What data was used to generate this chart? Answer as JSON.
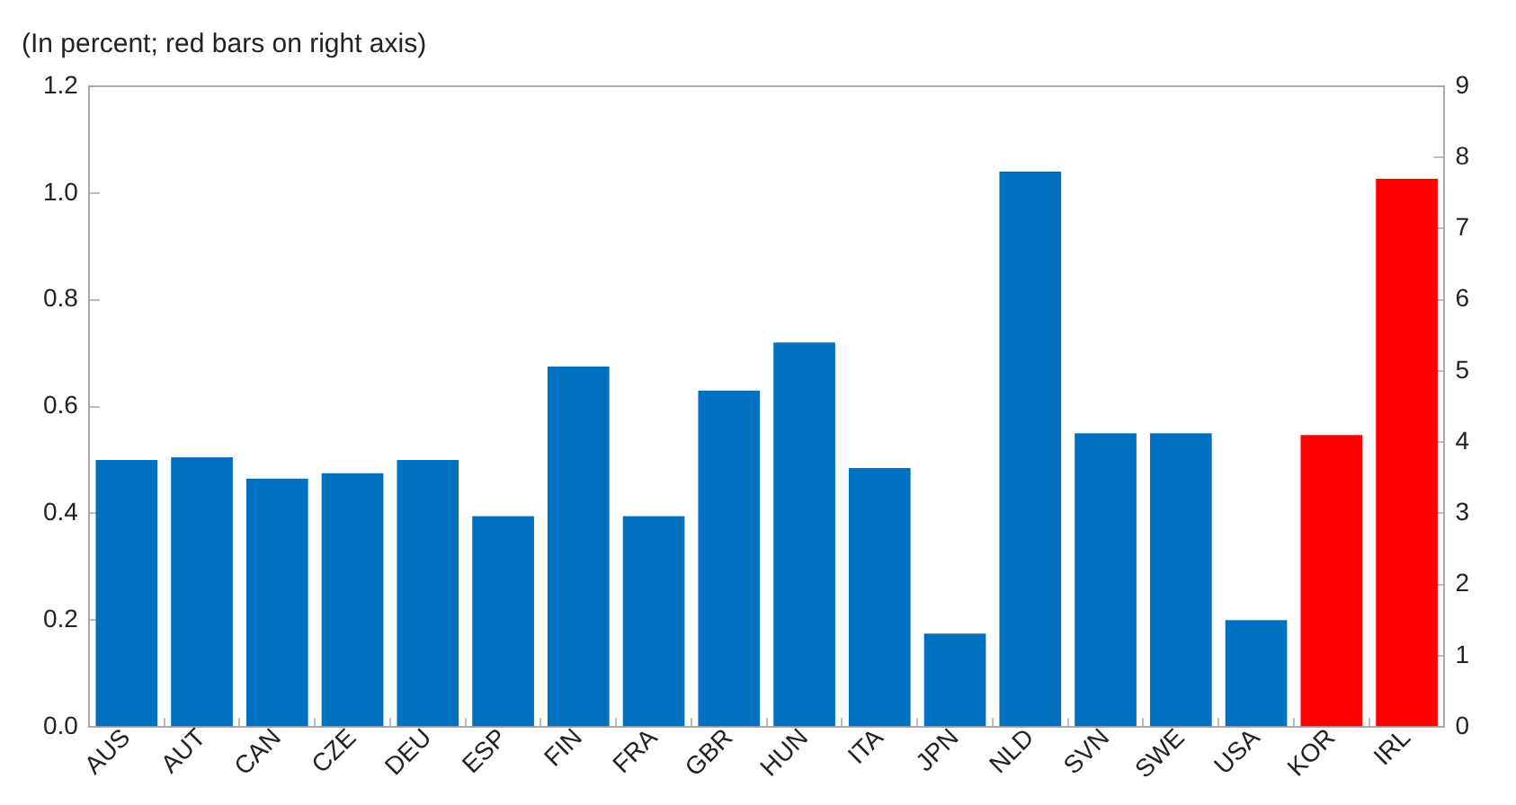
{
  "chart_data": {
    "type": "bar",
    "title": "(In percent; red bars on right axis)",
    "categories": [
      "AUS",
      "AUT",
      "CAN",
      "CZE",
      "DEU",
      "ESP",
      "FIN",
      "FRA",
      "GBR",
      "HUN",
      "ITA",
      "JPN",
      "NLD",
      "SVN",
      "SWE",
      "USA",
      "KOR",
      "IRL"
    ],
    "series": [
      {
        "color": "#0070c0",
        "values": [
          0.5,
          0.505,
          0.465,
          0.475,
          0.5,
          0.395,
          0.675,
          0.395,
          0.63,
          0.72,
          0.485,
          0.175,
          1.04,
          0.55,
          0.55,
          0.2,
          null,
          null
        ]
      },
      {
        "color": "#ff0000",
        "axis": "y2",
        "values": [
          null,
          null,
          null,
          null,
          null,
          null,
          null,
          null,
          null,
          null,
          null,
          null,
          null,
          null,
          null,
          null,
          4.1,
          7.7
        ]
      }
    ],
    "ylim": [
      0,
      1.2
    ],
    "yticks": [
      {
        "value": 0,
        "label": "0.0"
      },
      {
        "value": 0.2,
        "label": "0.2"
      },
      {
        "value": 0.4,
        "label": "0.4"
      },
      {
        "value": 0.6,
        "label": "0.6"
      },
      {
        "value": 0.8,
        "label": "0.8"
      },
      {
        "value": 1,
        "label": "1.0"
      },
      {
        "value": 1.2,
        "label": "1.2"
      }
    ],
    "y2lim": [
      0,
      9
    ],
    "y2ticks": [
      0,
      1,
      2,
      3,
      4,
      5,
      6,
      7,
      8,
      9
    ],
    "grid": false,
    "legend": false
  }
}
